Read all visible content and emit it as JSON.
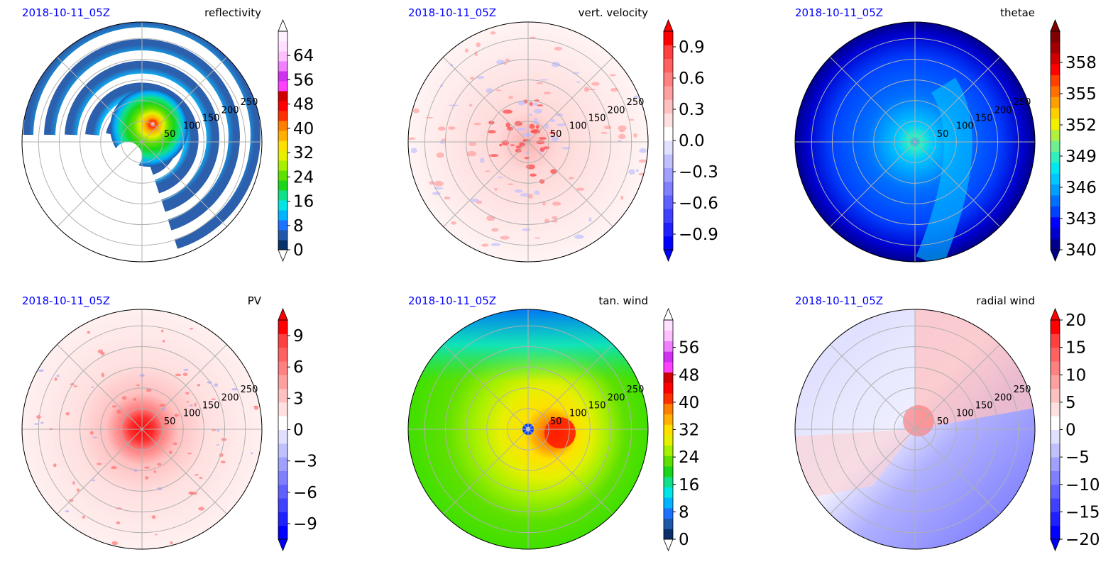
{
  "chart_data": [
    {
      "type": "heatmap",
      "projection": "polar",
      "date_label": "2018-10-11_05Z",
      "title": "reflectivity",
      "radial_ticks": [
        "50",
        "100",
        "150",
        "200",
        "250"
      ],
      "radial_max": 290,
      "colorbar": {
        "ticks": [
          "0",
          "8",
          "16",
          "24",
          "32",
          "40",
          "48",
          "56",
          "64"
        ],
        "min": 0,
        "max": 72,
        "extend": "both",
        "colors": [
          "#08306b",
          "#2157a8",
          "#1c72ff",
          "#00b4ff",
          "#00e5e5",
          "#10e08a",
          "#1ad61a",
          "#5ee000",
          "#a6f000",
          "#e6f000",
          "#ffe000",
          "#ffb000",
          "#ff7f00",
          "#ff3000",
          "#ff0000",
          "#d00000",
          "#ff40ff",
          "#d030f0",
          "#f080ff",
          "#ffc0ff",
          "#ffe0ff",
          "#fff0ff"
        ],
        "extend_low_color": "#ffffff",
        "extend_high_color": "#ffffff"
      }
    },
    {
      "type": "heatmap",
      "projection": "polar",
      "date_label": "2018-10-11_05Z",
      "title": "vert. velocity",
      "radial_ticks": [
        "50",
        "100",
        "150",
        "200",
        "250"
      ],
      "radial_max": 290,
      "colorbar": {
        "ticks": [
          "−0.9",
          "−0.6",
          "−0.3",
          "0.0",
          "0.3",
          "0.6",
          "0.9"
        ],
        "min": -1.05,
        "max": 1.05,
        "extend": "both",
        "colors": [
          "#0000ff",
          "#2020ff",
          "#4040ff",
          "#6060ff",
          "#8080ff",
          "#a0a0ff",
          "#c0c0ff",
          "#e0e0ff",
          "#ffffff",
          "#ffe0e0",
          "#ffc0c0",
          "#ffa0a0",
          "#ff8080",
          "#ff6060",
          "#ff4040",
          "#ff0000"
        ],
        "extend_low_color": "#0000ff",
        "extend_high_color": "#ff0000"
      }
    },
    {
      "type": "heatmap",
      "projection": "polar",
      "date_label": "2018-10-11_05Z",
      "title": "thetae",
      "radial_ticks": [
        "50",
        "100",
        "150",
        "200",
        "250"
      ],
      "radial_max": 290,
      "colorbar": {
        "ticks": [
          "340",
          "343",
          "346",
          "349",
          "352",
          "355",
          "358"
        ],
        "min": 340,
        "max": 361,
        "extend": "both",
        "colors": [
          "#00008b",
          "#0000cd",
          "#0000ff",
          "#0040ff",
          "#0070ff",
          "#00a0ff",
          "#00c8ff",
          "#00e8f0",
          "#30f0c0",
          "#70f090",
          "#b0f040",
          "#f0f000",
          "#ffd000",
          "#ffa000",
          "#ff7000",
          "#ff4000",
          "#ff0000",
          "#d00000",
          "#a00000",
          "#800000"
        ],
        "extend_low_color": "#00008b",
        "extend_high_color": "#800000"
      }
    },
    {
      "type": "heatmap",
      "projection": "polar",
      "date_label": "2018-10-11_05Z",
      "title": "PV",
      "radial_ticks": [
        "50",
        "100",
        "150",
        "200",
        "250"
      ],
      "radial_max": 290,
      "colorbar": {
        "ticks": [
          "−9",
          "−6",
          "−3",
          "0",
          "3",
          "6",
          "9"
        ],
        "min": -10.5,
        "max": 10.5,
        "extend": "both",
        "colors": [
          "#0000ff",
          "#2020ff",
          "#4040ff",
          "#6060ff",
          "#8080ff",
          "#a0a0ff",
          "#c0c0ff",
          "#e0e0ff",
          "#ffffff",
          "#ffe0e0",
          "#ffc0c0",
          "#ffa0a0",
          "#ff8080",
          "#ff6060",
          "#ff4040",
          "#ff0000"
        ],
        "extend_low_color": "#0000ff",
        "extend_high_color": "#ff0000"
      }
    },
    {
      "type": "heatmap",
      "projection": "polar",
      "date_label": "2018-10-11_05Z",
      "title": "tan. wind",
      "radial_ticks": [
        "50",
        "100",
        "150",
        "200",
        "250"
      ],
      "radial_max": 290,
      "colorbar": {
        "ticks": [
          "0",
          "8",
          "16",
          "24",
          "32",
          "40",
          "48",
          "56"
        ],
        "min": 0,
        "max": 64,
        "extend": "both",
        "colors": [
          "#08306b",
          "#2157a8",
          "#1c72ff",
          "#00b4ff",
          "#00e5e5",
          "#10e08a",
          "#1ad61a",
          "#5ee000",
          "#a6f000",
          "#e6f000",
          "#ffe000",
          "#ffb000",
          "#ff7f00",
          "#ff3000",
          "#ff0000",
          "#d00000",
          "#ff40ff",
          "#d030f0",
          "#f080ff",
          "#ffc0ff",
          "#ffe0ff"
        ],
        "extend_low_color": "#ffffff",
        "extend_high_color": "#ffffff"
      }
    },
    {
      "type": "heatmap",
      "projection": "polar",
      "date_label": "2018-10-11_05Z",
      "title": "radial wind",
      "radial_ticks": [
        "50",
        "100",
        "150",
        "200",
        "250"
      ],
      "radial_max": 290,
      "colorbar": {
        "ticks": [
          "−20",
          "−15",
          "−10",
          "−5",
          "0",
          "5",
          "10",
          "15",
          "20"
        ],
        "min": -20,
        "max": 20,
        "extend": "both",
        "colors": [
          "#0000ff",
          "#2020ff",
          "#4040ff",
          "#6060ff",
          "#8080ff",
          "#a0a0ff",
          "#c0c0ff",
          "#e0e0ff",
          "#ffffff",
          "#ffe0e0",
          "#ffc0c0",
          "#ffa0a0",
          "#ff8080",
          "#ff6060",
          "#ff4040",
          "#ff0000"
        ],
        "extend_low_color": "#0000ff",
        "extend_high_color": "#ff0000"
      }
    }
  ]
}
